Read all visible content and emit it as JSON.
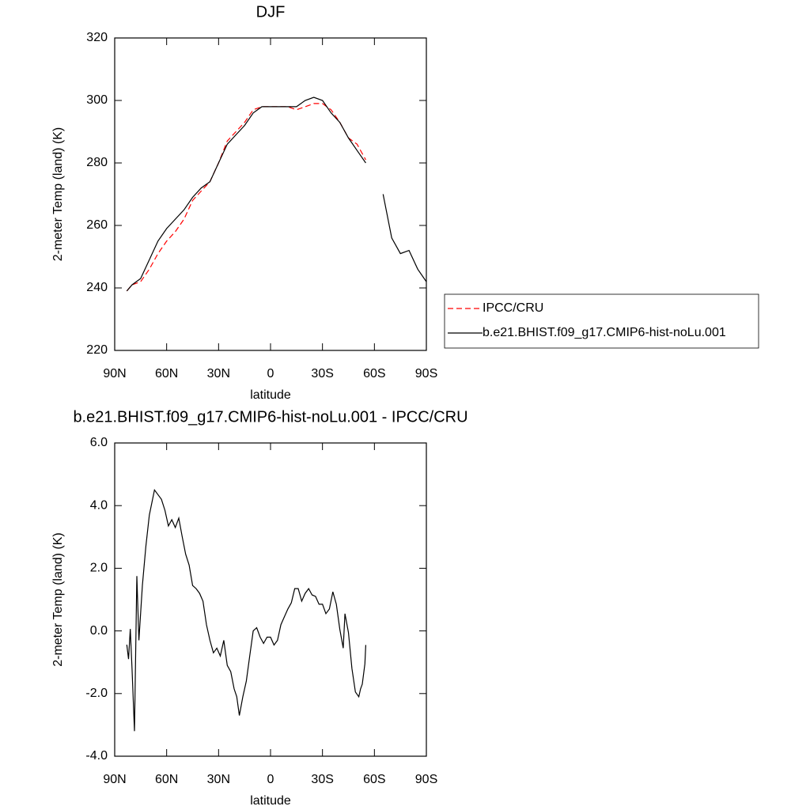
{
  "chart_data": [
    {
      "type": "line",
      "title": "DJF",
      "xlabel": "latitude",
      "ylabel": "2-meter Temp (land) (K)",
      "x": [
        83,
        80,
        75,
        70,
        65,
        60,
        55,
        50,
        45,
        40,
        35,
        30,
        25,
        20,
        15,
        10,
        5,
        0,
        -5,
        -10,
        -15,
        -20,
        -25,
        -30,
        -35,
        -40,
        -45,
        -50,
        -55,
        -60,
        -65,
        -70,
        -75,
        -80,
        -85,
        -90
      ],
      "series": [
        {
          "name": "IPCC/CRU",
          "color": "#ff0000",
          "dashed": true,
          "values": [
            239,
            241,
            242,
            246,
            251,
            255,
            258,
            262,
            268,
            271,
            274,
            280,
            287,
            290,
            293,
            297,
            298,
            298,
            298,
            298,
            297,
            298,
            299,
            299,
            297,
            293,
            288,
            286,
            281,
            null,
            null,
            null,
            null,
            null,
            null,
            null
          ]
        },
        {
          "name": "b.e21.BHIST.f09_g17.CMIP6-hist-noLu.001",
          "color": "#000000",
          "dashed": false,
          "values": [
            239,
            241,
            243,
            249,
            255,
            259,
            262,
            265,
            269,
            272,
            274,
            280,
            286,
            289,
            292,
            296,
            298,
            298,
            298,
            298,
            298,
            300,
            301,
            300,
            296,
            293,
            288,
            284,
            280,
            null,
            270,
            256,
            251,
            252,
            246,
            242
          ]
        }
      ],
      "xlim": [
        90,
        -90
      ],
      "xticks": [
        {
          "value": 90,
          "label": "90N"
        },
        {
          "value": 60,
          "label": "60N"
        },
        {
          "value": 30,
          "label": "30N"
        },
        0,
        {
          "value": -30,
          "label": "30S"
        },
        {
          "value": -60,
          "label": "60S"
        },
        {
          "value": -90,
          "label": "90S"
        }
      ],
      "ylim": [
        220,
        320
      ],
      "yticks": [
        220,
        240,
        260,
        280,
        300,
        320
      ],
      "legend": "right",
      "grid": false
    },
    {
      "type": "line",
      "title": "b.e21.BHIST.f09_g17.CMIP6-hist-noLu.001 - IPCC/CRU",
      "xlabel": "latitude",
      "ylabel": "2-meter Temp (land) (K)",
      "x": [
        83,
        82,
        81,
        80,
        78.6,
        77.2,
        76,
        74,
        72,
        70,
        67,
        65,
        63,
        61,
        59,
        57,
        55,
        53,
        51,
        49,
        47,
        45,
        43,
        41,
        39,
        37,
        35,
        33,
        31,
        29,
        27,
        25,
        23,
        21,
        19.5,
        18,
        16,
        14,
        12,
        10,
        8,
        6,
        4,
        2,
        0,
        -2,
        -4,
        -6,
        -8,
        -10,
        -12,
        -14,
        -16,
        -18,
        -20,
        -22,
        -24,
        -26,
        -28,
        -30,
        -32,
        -34,
        -36,
        -38,
        -40,
        -42,
        -43,
        -45,
        -47,
        -49,
        -51,
        -52,
        -53,
        -54.5,
        -55
      ],
      "series": [
        {
          "name": "difference",
          "color": "#000000",
          "dashed": false,
          "values": [
            -0.44,
            -0.9,
            0.06,
            -1.2,
            -3.2,
            1.75,
            -0.3,
            1.45,
            2.7,
            3.7,
            4.5,
            4.35,
            4.2,
            3.85,
            3.35,
            3.55,
            3.3,
            3.6,
            3.0,
            2.45,
            2.1,
            1.45,
            1.35,
            1.2,
            0.95,
            0.2,
            -0.3,
            -0.7,
            -0.55,
            -0.8,
            -0.3,
            -1.1,
            -1.3,
            -1.85,
            -2.1,
            -2.7,
            -2.1,
            -1.6,
            -0.8,
            0.0,
            0.1,
            -0.2,
            -0.4,
            -0.2,
            -0.2,
            -0.45,
            -0.3,
            0.2,
            0.45,
            0.7,
            0.9,
            1.35,
            1.35,
            0.95,
            1.2,
            1.35,
            1.15,
            1.1,
            0.85,
            0.85,
            0.55,
            0.7,
            1.25,
            0.85,
            0.05,
            -0.55,
            0.55,
            -0.05,
            -1.2,
            -1.95,
            -2.1,
            -1.85,
            -1.7,
            -1.05,
            -0.45
          ]
        }
      ],
      "xlim": [
        90,
        -90
      ],
      "xticks": [
        {
          "value": 90,
          "label": "90N"
        },
        {
          "value": 60,
          "label": "60N"
        },
        {
          "value": 30,
          "label": "30N"
        },
        0,
        {
          "value": -30,
          "label": "30S"
        },
        {
          "value": -60,
          "label": "60S"
        },
        {
          "value": -90,
          "label": "90S"
        }
      ],
      "ylim": [
        -4,
        6
      ],
      "yticks": [
        {
          "value": -4,
          "label": "-4.0"
        },
        {
          "value": -2,
          "label": "-2.0"
        },
        {
          "value": 0,
          "label": "0.0"
        },
        {
          "value": 2,
          "label": "2.0"
        },
        {
          "value": 4,
          "label": "4.0"
        },
        {
          "value": 6,
          "label": "6.0"
        }
      ],
      "grid": false
    }
  ]
}
